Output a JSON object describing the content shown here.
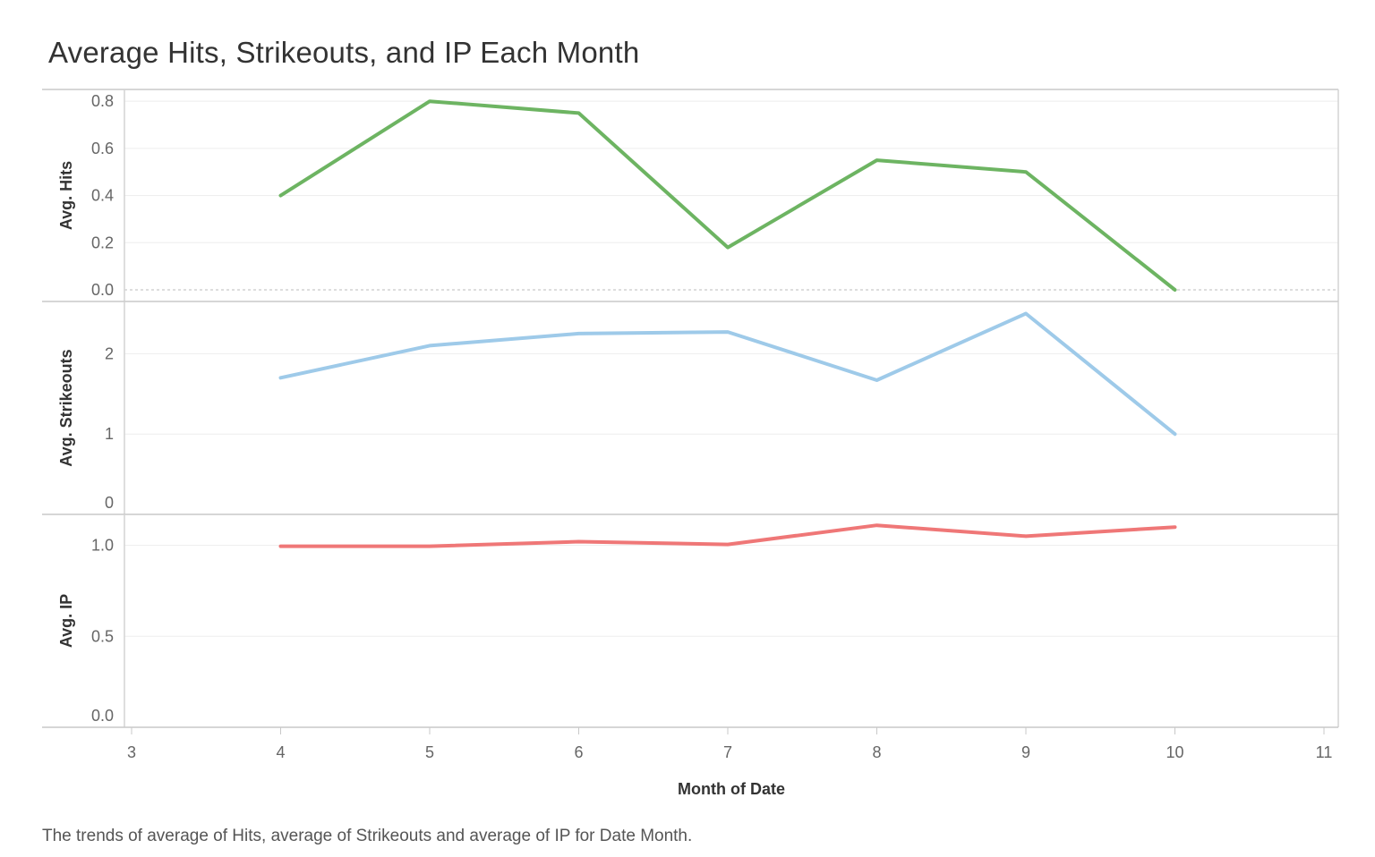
{
  "title": "Average Hits, Strikeouts, and IP Each Month",
  "caption": "The trends of average of Hits, average of Strikeouts and average of IP for Date Month.",
  "chart_data": {
    "type": "line",
    "xlabel": "Month of Date",
    "xlim": [
      3,
      11
    ],
    "x_ticks": [
      "3",
      "4",
      "5",
      "6",
      "7",
      "8",
      "9",
      "10",
      "11"
    ],
    "x": [
      4,
      5,
      6,
      7,
      8,
      9,
      10
    ],
    "grid": "horizontal",
    "panels": [
      {
        "ylabel": "Avg. Hits",
        "ylim": [
          0,
          0.85
        ],
        "y_ticks": [
          "0.0",
          "0.2",
          "0.4",
          "0.6",
          "0.8"
        ],
        "color": "#6db462",
        "values": [
          0.4,
          0.8,
          0.75,
          0.18,
          0.55,
          0.5,
          0.0
        ]
      },
      {
        "ylabel": "Avg. Strikeouts",
        "ylim": [
          0,
          2.65
        ],
        "y_ticks": [
          "0",
          "1",
          "2"
        ],
        "color": "#9ecae9",
        "values": [
          1.7,
          2.1,
          2.25,
          2.27,
          1.67,
          2.5,
          1.0
        ]
      },
      {
        "ylabel": "Avg. IP",
        "ylim": [
          0,
          1.17
        ],
        "y_ticks": [
          "0.0",
          "0.5",
          "1.0"
        ],
        "color": "#ef7777",
        "values": [
          0.995,
          0.995,
          1.02,
          1.005,
          1.11,
          1.05,
          1.1
        ]
      }
    ]
  }
}
